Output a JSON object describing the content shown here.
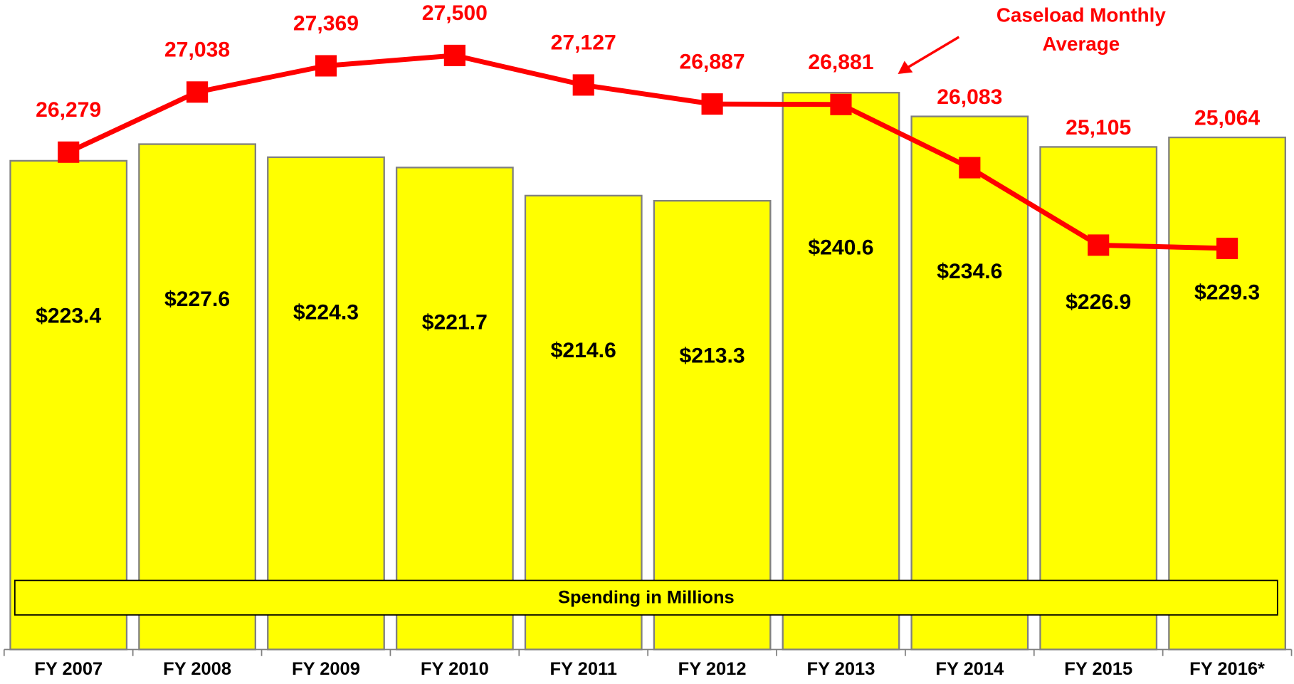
{
  "chart_data": {
    "type": "bar",
    "categories": [
      "FY 2007",
      "FY 2008",
      "FY 2009",
      "FY 2010",
      "FY 2011",
      "FY 2012",
      "FY 2013",
      "FY 2014",
      "FY 2015",
      "FY 2016*"
    ],
    "series": [
      {
        "name": "Spending in Millions",
        "type": "bar",
        "color": "#ffff00",
        "axis": "y",
        "values": [
          223.4,
          227.6,
          224.3,
          221.7,
          214.6,
          213.3,
          240.6,
          234.6,
          226.9,
          229.3
        ],
        "value_labels": [
          "$223.4",
          "$227.6",
          "$224.3",
          "$221.7",
          "$214.6",
          "$213.3",
          "$240.6",
          "$234.6",
          "$226.9",
          "$229.3"
        ]
      },
      {
        "type": "line",
        "color": "#ff0000",
        "axis": "y2",
        "values": [
          26279,
          27038,
          27369,
          27500,
          27127,
          26887,
          26881,
          26083,
          25105,
          25064
        ],
        "value_labels": [
          "26,279",
          "27,038",
          "27,369",
          "27,500",
          "27,127",
          "26,887",
          "26,881",
          "26,083",
          "25,105",
          "25,064"
        ]
      }
    ],
    "annotation": [
      "Caseload Monthly",
      "Average"
    ],
    "ylim": [
      100,
      264
    ],
    "y2lim": [
      20000,
      28200
    ]
  }
}
